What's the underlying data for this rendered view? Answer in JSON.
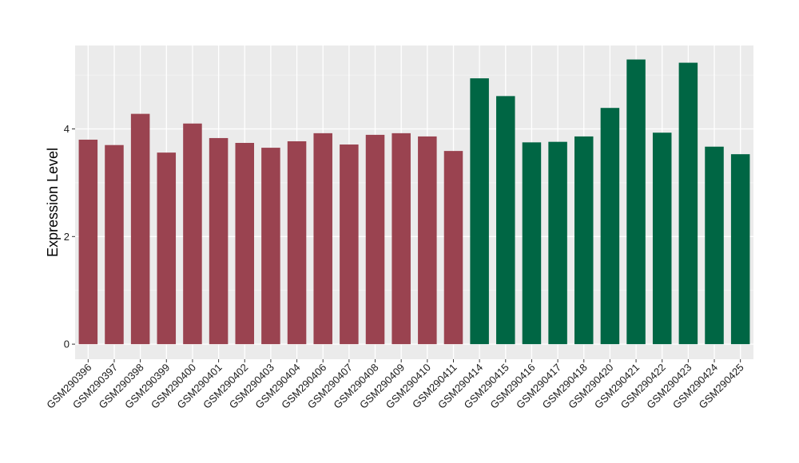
{
  "chart_data": {
    "type": "bar",
    "title": "",
    "xlabel": "",
    "ylabel": "Expression Level",
    "ylim": [
      -0.28,
      5.55
    ],
    "yticks": [
      0,
      2,
      4
    ],
    "grid": true,
    "legend": "none",
    "colors": {
      "panel_background": "#ebebeb",
      "grid_major": "#ffffff",
      "group_1": "#9a4350",
      "group_2": "#006644"
    },
    "categories": [
      "GSM290396",
      "GSM290397",
      "GSM290398",
      "GSM290399",
      "GSM290400",
      "GSM290401",
      "GSM290402",
      "GSM290403",
      "GSM290404",
      "GSM290406",
      "GSM290407",
      "GSM290408",
      "GSM290409",
      "GSM290410",
      "GSM290411",
      "GSM290414",
      "GSM290415",
      "GSM290416",
      "GSM290417",
      "GSM290418",
      "GSM290420",
      "GSM290421",
      "GSM290422",
      "GSM290423",
      "GSM290424",
      "GSM290425"
    ],
    "values": [
      3.8,
      3.7,
      4.28,
      3.56,
      4.1,
      3.83,
      3.74,
      3.65,
      3.77,
      3.92,
      3.71,
      3.89,
      3.92,
      3.86,
      3.59,
      4.94,
      4.61,
      3.75,
      3.76,
      3.86,
      4.39,
      5.29,
      3.93,
      5.23,
      3.67,
      3.53
    ],
    "bar_group": [
      1,
      1,
      1,
      1,
      1,
      1,
      1,
      1,
      1,
      1,
      1,
      1,
      1,
      1,
      1,
      2,
      2,
      2,
      2,
      2,
      2,
      2,
      2,
      2,
      2,
      2
    ]
  }
}
